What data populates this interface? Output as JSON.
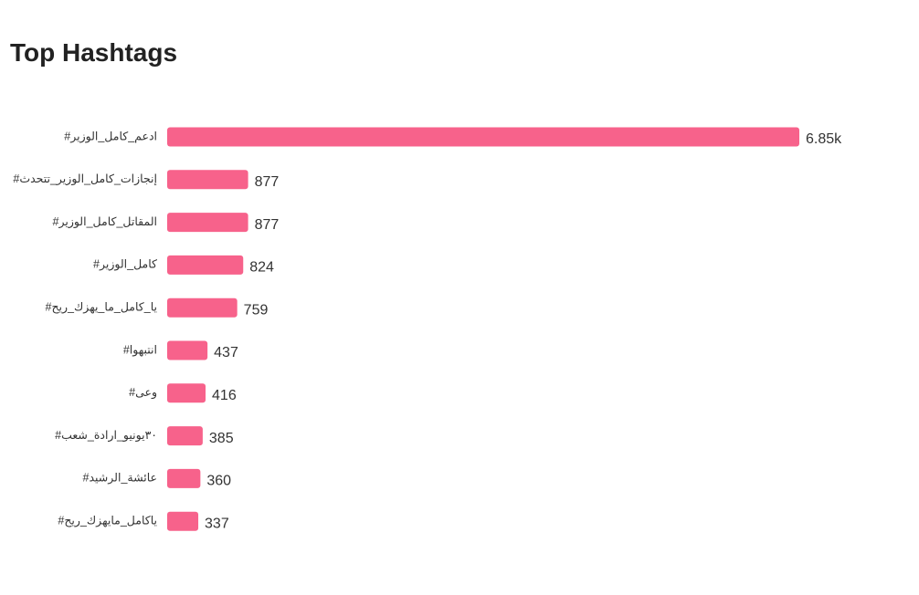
{
  "chart_data": {
    "type": "bar",
    "orientation": "horizontal",
    "title": "Top Hashtags",
    "categories": [
      "#ادعم_كامل_الوزير",
      "#إنجازات_كامل_الوزير_تتحدث",
      "#المقاتل_كامل_الوزير",
      "#كامل_الوزير",
      "#يا_كامل_ما_يهزك_ريح",
      "#انتبهوا",
      "#وعى",
      "#٣٠يونيو_ارادة_شعب",
      "#عائشة_الرشيد",
      "#ياكامل_مايهزك_ريح"
    ],
    "values": [
      6850,
      877,
      877,
      824,
      759,
      437,
      416,
      385,
      360,
      337
    ],
    "value_labels": [
      "6.85k",
      "877",
      "877",
      "824",
      "759",
      "437",
      "416",
      "385",
      "360",
      "337"
    ],
    "color": "#f7628b"
  }
}
